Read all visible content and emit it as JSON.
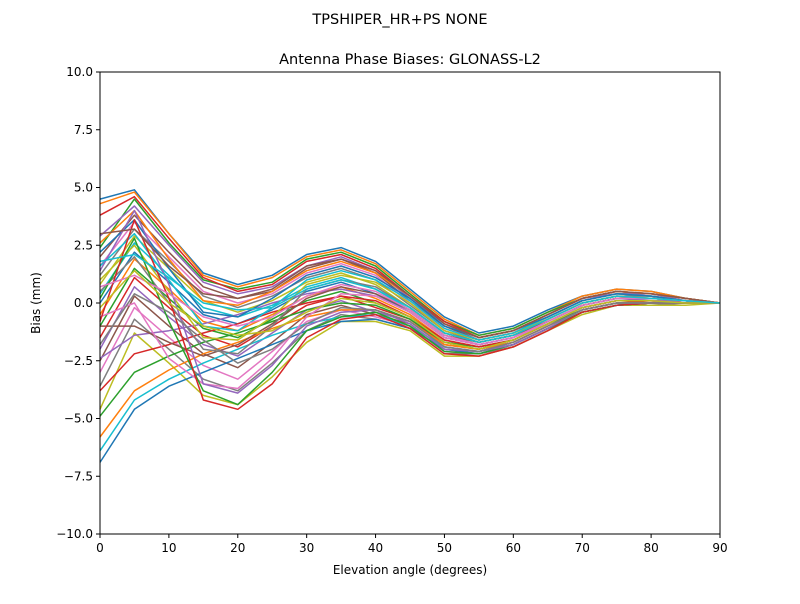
{
  "figure": {
    "suptitle": "TPSHIPER_HR+PS  NONE"
  },
  "chart_data": {
    "type": "line",
    "title": "Antenna Phase Biases: GLONASS-L2",
    "xlabel": "Elevation angle (degrees)",
    "ylabel": "Bias (mm)",
    "xlim": [
      0,
      90
    ],
    "ylim": [
      -10,
      10
    ],
    "x_ticks": [
      "0",
      "10",
      "20",
      "30",
      "40",
      "50",
      "60",
      "70",
      "80",
      "90"
    ],
    "y_ticks": [
      "10.0",
      "7.5",
      "5.0",
      "2.5",
      "0.0",
      "−2.5",
      "−5.0",
      "−7.5",
      "−10.0"
    ],
    "x_tick_values": [
      0,
      10,
      20,
      30,
      40,
      50,
      60,
      70,
      80,
      90
    ],
    "y_tick_values": [
      10,
      7.5,
      5,
      2.5,
      0,
      -2.5,
      -5,
      -7.5,
      -10
    ],
    "grid": false,
    "legend": "none",
    "palette": [
      "#1f77b4",
      "#ff7f0e",
      "#2ca02c",
      "#d62728",
      "#9467bd",
      "#8c564b",
      "#e377c2",
      "#7f7f7f",
      "#bcbd22",
      "#17becf"
    ],
    "x": [
      0,
      5,
      10,
      15,
      20,
      25,
      30,
      35,
      40,
      45,
      50,
      55,
      60,
      65,
      70,
      75,
      80,
      85,
      90
    ],
    "series": [
      {
        "values": [
          4.5,
          4.9,
          3.0,
          1.3,
          0.8,
          1.2,
          2.1,
          2.4,
          1.8,
          0.6,
          -0.6,
          -1.3,
          -1.0,
          -0.3,
          0.3,
          0.6,
          0.5,
          0.2,
          0.0
        ]
      },
      {
        "values": [
          4.3,
          4.8,
          3.0,
          1.2,
          0.7,
          1.1,
          2.0,
          2.3,
          1.7,
          0.5,
          -0.7,
          -1.4,
          -1.1,
          -0.4,
          0.3,
          0.6,
          0.5,
          0.2,
          0.0
        ]
      },
      {
        "values": [
          2.4,
          4.5,
          2.6,
          1.0,
          0.6,
          0.9,
          1.9,
          2.2,
          1.6,
          0.4,
          -0.8,
          -1.4,
          -1.1,
          -0.4,
          0.2,
          0.5,
          0.4,
          0.2,
          0.0
        ]
      },
      {
        "values": [
          3.8,
          4.6,
          2.8,
          1.1,
          0.5,
          0.8,
          1.8,
          2.1,
          1.5,
          0.3,
          -0.8,
          -1.5,
          -1.2,
          -0.5,
          0.2,
          0.5,
          0.4,
          0.2,
          0.0
        ]
      },
      {
        "values": [
          2.9,
          4.2,
          2.5,
          0.9,
          0.4,
          0.7,
          1.6,
          2.0,
          1.4,
          0.2,
          -0.9,
          -1.5,
          -1.2,
          -0.5,
          0.2,
          0.4,
          0.4,
          0.1,
          0.0
        ]
      },
      {
        "values": [
          2.0,
          3.8,
          2.2,
          0.7,
          0.2,
          0.5,
          1.5,
          1.9,
          1.3,
          0.1,
          -1.0,
          -1.6,
          -1.3,
          -0.6,
          0.1,
          0.4,
          0.3,
          0.1,
          0.0
        ]
      },
      {
        "values": [
          1.6,
          3.5,
          2.0,
          0.5,
          0.0,
          0.4,
          1.3,
          1.7,
          1.2,
          0.0,
          -1.1,
          -1.6,
          -1.3,
          -0.6,
          0.1,
          0.4,
          0.3,
          0.1,
          0.0
        ]
      },
      {
        "values": [
          1.2,
          3.2,
          1.8,
          0.3,
          -0.2,
          0.3,
          1.1,
          1.5,
          1.0,
          -0.1,
          -1.2,
          -1.7,
          -1.4,
          -0.7,
          0.0,
          0.3,
          0.3,
          0.1,
          0.0
        ]
      },
      {
        "values": [
          0.8,
          2.9,
          1.5,
          0.1,
          -0.4,
          0.1,
          0.9,
          1.3,
          0.8,
          -0.2,
          -1.3,
          -1.7,
          -1.4,
          -0.7,
          0.0,
          0.3,
          0.2,
          0.1,
          0.0
        ]
      },
      {
        "values": [
          0.4,
          2.6,
          1.2,
          -0.2,
          -0.6,
          -0.1,
          0.7,
          1.1,
          0.6,
          -0.3,
          -1.4,
          -1.8,
          -1.5,
          -0.8,
          -0.1,
          0.2,
          0.2,
          0.1,
          0.0
        ]
      },
      {
        "values": [
          0.0,
          2.2,
          0.9,
          -0.5,
          -0.9,
          -0.3,
          0.5,
          0.9,
          0.4,
          -0.4,
          -1.5,
          -1.8,
          -1.5,
          -0.8,
          -0.1,
          0.2,
          0.2,
          0.1,
          0.0
        ]
      },
      {
        "values": [
          -0.5,
          1.9,
          0.6,
          -0.8,
          -1.2,
          -0.5,
          0.3,
          0.7,
          0.2,
          -0.5,
          -1.6,
          -1.9,
          -1.6,
          -0.9,
          -0.2,
          0.1,
          0.1,
          0.0,
          0.0
        ]
      },
      {
        "values": [
          -1.0,
          1.5,
          0.2,
          -1.1,
          -1.5,
          -0.7,
          0.1,
          0.5,
          0.0,
          -0.6,
          -1.7,
          -2.0,
          -1.6,
          -0.9,
          -0.2,
          0.1,
          0.1,
          0.0,
          0.0
        ]
      },
      {
        "values": [
          -1.5,
          1.1,
          -0.2,
          -1.4,
          -1.9,
          -1.0,
          -0.1,
          0.3,
          -0.2,
          -0.7,
          -1.8,
          -2.0,
          -1.7,
          -1.0,
          -0.3,
          0.0,
          0.1,
          0.0,
          0.0
        ]
      },
      {
        "values": [
          -2.0,
          0.7,
          -0.6,
          -1.8,
          -2.3,
          -1.3,
          -0.3,
          0.1,
          -0.4,
          -0.8,
          -1.9,
          -2.1,
          -1.7,
          -1.0,
          -0.3,
          0.0,
          0.0,
          0.0,
          0.0
        ]
      },
      {
        "values": [
          -2.5,
          0.3,
          -1.0,
          -2.2,
          -2.8,
          -1.7,
          -0.5,
          -0.1,
          -0.5,
          -0.9,
          -2.0,
          -2.1,
          -1.8,
          -1.1,
          -0.4,
          -0.1,
          0.0,
          0.0,
          0.0
        ]
      },
      {
        "values": [
          -3.0,
          -0.2,
          -1.5,
          -2.7,
          -3.3,
          -2.1,
          -0.8,
          -0.3,
          -0.6,
          -1.0,
          -2.1,
          -2.2,
          -1.8,
          -1.1,
          -0.4,
          -0.1,
          0.0,
          0.0,
          0.0
        ]
      },
      {
        "values": [
          -3.6,
          -0.7,
          -2.0,
          -3.3,
          -3.8,
          -2.6,
          -1.2,
          -0.5,
          -0.7,
          -1.1,
          -2.2,
          -2.2,
          -1.9,
          -1.2,
          -0.4,
          -0.1,
          -0.1,
          0.0,
          0.0
        ]
      },
      {
        "values": [
          -4.6,
          -1.3,
          -2.6,
          -4.0,
          -4.4,
          -3.2,
          -1.7,
          -0.8,
          -0.8,
          -1.2,
          -2.3,
          -2.3,
          -1.9,
          -1.2,
          -0.5,
          -0.1,
          -0.1,
          -0.1,
          0.0
        ]
      },
      {
        "values": [
          -6.4,
          -4.2,
          -3.3,
          -2.6,
          -2.0,
          -1.4,
          -0.9,
          -0.6,
          -0.5,
          -1.0,
          -1.9,
          -2.1,
          -1.8,
          -1.1,
          -0.4,
          -0.1,
          0.0,
          0.0,
          0.0
        ]
      },
      {
        "values": [
          -6.9,
          -4.6,
          -3.6,
          -3.0,
          -2.4,
          -1.8,
          -1.2,
          -0.8,
          -0.7,
          -1.1,
          -2.0,
          -2.2,
          -1.8,
          -1.1,
          -0.4,
          -0.1,
          0.0,
          0.0,
          0.0
        ]
      },
      {
        "values": [
          -5.8,
          -3.8,
          -2.9,
          -2.2,
          -1.7,
          -1.1,
          -0.6,
          -0.3,
          -0.3,
          -0.8,
          -1.8,
          -2.0,
          -1.7,
          -1.0,
          -0.3,
          0.0,
          0.0,
          0.0,
          0.0
        ]
      },
      {
        "values": [
          -4.9,
          -3.0,
          -2.3,
          -1.7,
          -1.3,
          -0.8,
          -0.3,
          0.0,
          -0.1,
          -0.7,
          -1.7,
          -1.9,
          -1.6,
          -0.9,
          -0.3,
          0.0,
          0.0,
          0.0,
          0.0
        ]
      },
      {
        "values": [
          -3.8,
          -2.2,
          -1.8,
          -1.3,
          -0.9,
          -0.4,
          0.0,
          0.3,
          0.1,
          -0.6,
          -1.6,
          -1.9,
          -1.6,
          -0.9,
          -0.2,
          0.1,
          0.1,
          0.0,
          0.0
        ]
      },
      {
        "values": [
          -2.4,
          -1.4,
          -1.2,
          -0.9,
          -0.5,
          0.0,
          0.4,
          0.6,
          0.3,
          -0.4,
          -1.5,
          -1.8,
          -1.5,
          -0.8,
          -0.1,
          0.2,
          0.1,
          0.1,
          0.0
        ]
      },
      {
        "values": [
          -1.0,
          -1.0,
          -1.7,
          -2.3,
          -1.8,
          -0.9,
          0.2,
          0.7,
          0.4,
          -0.3,
          -1.4,
          -1.7,
          -1.4,
          -0.8,
          -0.1,
          0.2,
          0.2,
          0.1,
          0.0
        ]
      },
      {
        "values": [
          -0.6,
          0.0,
          -2.4,
          -3.5,
          -3.7,
          -2.4,
          -0.6,
          0.4,
          0.3,
          -0.4,
          -1.5,
          -1.8,
          -1.5,
          -0.9,
          -0.2,
          0.1,
          0.1,
          0.0,
          0.0
        ]
      },
      {
        "values": [
          0.5,
          2.0,
          0.0,
          -2.0,
          -2.2,
          -1.0,
          0.6,
          1.0,
          0.7,
          -0.2,
          -1.3,
          -1.7,
          -1.4,
          -0.7,
          0.0,
          0.3,
          0.2,
          0.1,
          0.0
        ]
      },
      {
        "values": [
          1.0,
          2.5,
          0.5,
          -1.5,
          -1.6,
          -0.6,
          0.8,
          1.2,
          0.9,
          0.0,
          -1.2,
          -1.6,
          -1.3,
          -0.7,
          0.0,
          0.3,
          0.2,
          0.1,
          0.0
        ]
      },
      {
        "values": [
          1.6,
          3.0,
          1.0,
          -1.0,
          -1.2,
          -0.2,
          1.0,
          1.4,
          1.0,
          0.1,
          -1.1,
          -1.6,
          -1.3,
          -0.6,
          0.1,
          0.4,
          0.3,
          0.1,
          0.0
        ]
      },
      {
        "values": [
          2.2,
          3.6,
          1.5,
          -0.4,
          -0.6,
          0.2,
          1.2,
          1.6,
          1.1,
          0.2,
          -1.0,
          -1.5,
          -1.2,
          -0.6,
          0.1,
          0.4,
          0.3,
          0.1,
          0.0
        ]
      },
      {
        "values": [
          2.6,
          4.0,
          1.9,
          0.1,
          -0.1,
          0.5,
          1.4,
          1.8,
          1.3,
          0.3,
          -0.9,
          -1.5,
          -1.2,
          -0.5,
          0.2,
          0.5,
          0.4,
          0.2,
          0.0
        ]
      },
      {
        "values": [
          0.2,
          2.8,
          -0.8,
          -3.8,
          -4.4,
          -3.0,
          -1.2,
          -0.6,
          -0.4,
          -1.0,
          -2.1,
          -2.2,
          -1.8,
          -1.1,
          -0.4,
          -0.1,
          0.0,
          0.0,
          0.0
        ]
      },
      {
        "values": [
          -0.8,
          3.6,
          0.2,
          -4.2,
          -4.6,
          -3.5,
          -1.5,
          -0.7,
          -0.5,
          -1.1,
          -2.2,
          -2.3,
          -1.9,
          -1.2,
          -0.4,
          -0.1,
          0.0,
          0.0,
          0.0
        ]
      },
      {
        "values": [
          1.4,
          4.0,
          0.8,
          -3.5,
          -3.9,
          -2.7,
          -1.0,
          -0.4,
          -0.3,
          -0.9,
          -2.0,
          -2.1,
          -1.8,
          -1.1,
          -0.3,
          0.0,
          0.0,
          0.0,
          0.0
        ]
      },
      {
        "values": [
          3.0,
          3.2,
          1.6,
          0.4,
          0.2,
          0.6,
          1.6,
          1.9,
          1.4,
          0.3,
          -0.9,
          -1.5,
          -1.2,
          -0.5,
          0.2,
          0.5,
          0.4,
          0.2,
          0.0
        ]
      },
      {
        "values": [
          0.7,
          1.2,
          0.4,
          -0.6,
          -1.0,
          -0.6,
          0.3,
          0.8,
          0.5,
          -0.3,
          -1.4,
          -1.8,
          -1.5,
          -0.8,
          -0.1,
          0.2,
          0.2,
          0.1,
          0.0
        ]
      },
      {
        "values": [
          -1.8,
          0.4,
          -0.4,
          -1.6,
          -2.6,
          -2.0,
          -0.9,
          -0.2,
          -0.3,
          -0.8,
          -1.9,
          -2.1,
          -1.7,
          -1.0,
          -0.3,
          0.0,
          0.0,
          0.0,
          0.0
        ]
      },
      {
        "values": [
          -0.2,
          1.4,
          0.0,
          -1.0,
          -1.4,
          -1.2,
          -0.4,
          0.2,
          0.0,
          -0.6,
          -1.7,
          -2.0,
          -1.6,
          -0.9,
          -0.2,
          0.1,
          0.1,
          0.0,
          0.0
        ]
      },
      {
        "values": [
          1.8,
          2.1,
          1.1,
          0.0,
          -0.3,
          -0.2,
          0.6,
          1.0,
          0.6,
          -0.2,
          -1.3,
          -1.7,
          -1.4,
          -0.7,
          0.0,
          0.3,
          0.2,
          0.1,
          0.0
        ]
      }
    ]
  }
}
